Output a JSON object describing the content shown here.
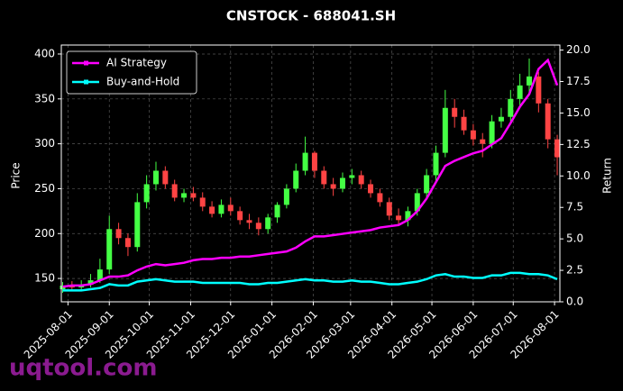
{
  "chart_data": {
    "type": "candlestick",
    "title": "CNSTOCK - 688041.SH",
    "ylabel": "Price",
    "y2label": "Return",
    "watermark": "uqtool.com",
    "x": [
      "2025-07-28",
      "2025-08-04",
      "2025-08-11",
      "2025-08-18",
      "2025-08-25",
      "2025-09-01",
      "2025-09-08",
      "2025-09-15",
      "2025-09-22",
      "2025-09-29",
      "2025-10-06",
      "2025-10-13",
      "2025-10-20",
      "2025-10-27",
      "2025-11-03",
      "2025-11-10",
      "2025-11-17",
      "2025-11-24",
      "2025-12-01",
      "2025-12-08",
      "2025-12-15",
      "2025-12-22",
      "2025-12-29",
      "2026-01-05",
      "2026-01-12",
      "2026-01-19",
      "2026-01-26",
      "2026-02-02",
      "2026-02-09",
      "2026-02-16",
      "2026-02-23",
      "2026-03-02",
      "2026-03-09",
      "2026-03-16",
      "2026-03-23",
      "2026-03-30",
      "2026-04-06",
      "2026-04-13",
      "2026-04-20",
      "2026-04-27",
      "2026-05-04",
      "2026-05-11",
      "2026-05-18",
      "2026-05-25",
      "2026-06-01",
      "2026-06-08",
      "2026-06-15",
      "2026-06-22",
      "2026-06-29",
      "2026-07-06",
      "2026-07-13",
      "2026-07-20",
      "2026-07-27",
      "2026-08-03"
    ],
    "open": [
      138,
      142,
      140,
      143,
      148,
      160,
      205,
      195,
      185,
      235,
      255,
      270,
      255,
      240,
      245,
      240,
      230,
      222,
      232,
      225,
      215,
      212,
      205,
      218,
      232,
      250,
      270,
      290,
      270,
      255,
      250,
      262,
      265,
      255,
      245,
      235,
      220,
      215,
      225,
      245,
      265,
      290,
      340,
      330,
      315,
      305,
      300,
      325,
      330,
      350,
      365,
      375,
      345,
      305
    ],
    "high": [
      146,
      147,
      148,
      155,
      172,
      220,
      212,
      200,
      245,
      265,
      280,
      275,
      260,
      250,
      252,
      246,
      236,
      238,
      240,
      230,
      222,
      218,
      222,
      235,
      255,
      278,
      308,
      292,
      275,
      262,
      268,
      272,
      270,
      260,
      250,
      240,
      228,
      230,
      250,
      272,
      298,
      360,
      350,
      338,
      322,
      312,
      332,
      340,
      360,
      378,
      395,
      380,
      350,
      310
    ],
    "low": [
      134,
      136,
      137,
      140,
      145,
      155,
      188,
      175,
      180,
      228,
      248,
      250,
      236,
      235,
      236,
      225,
      218,
      218,
      220,
      210,
      205,
      198,
      200,
      212,
      228,
      246,
      265,
      262,
      250,
      242,
      246,
      255,
      250,
      240,
      230,
      215,
      210,
      208,
      220,
      240,
      258,
      285,
      318,
      310,
      298,
      285,
      295,
      318,
      325,
      342,
      355,
      335,
      295,
      265
    ],
    "close": [
      142,
      140,
      143,
      148,
      160,
      205,
      195,
      185,
      235,
      255,
      270,
      255,
      240,
      245,
      240,
      230,
      222,
      232,
      225,
      215,
      212,
      205,
      218,
      232,
      250,
      270,
      290,
      270,
      255,
      250,
      262,
      265,
      255,
      245,
      235,
      220,
      215,
      225,
      245,
      265,
      290,
      340,
      330,
      315,
      305,
      300,
      325,
      330,
      350,
      365,
      375,
      345,
      305,
      285
    ],
    "up_color": "#44ff44",
    "down_color": "#ff4444",
    "series": [
      {
        "name": "AI Strategy",
        "color": "#ff00ff",
        "axis": "y2",
        "values": [
          1.2,
          1.3,
          1.3,
          1.4,
          1.7,
          2.0,
          2.0,
          2.1,
          2.5,
          2.8,
          3.0,
          2.9,
          3.0,
          3.1,
          3.3,
          3.4,
          3.4,
          3.5,
          3.5,
          3.6,
          3.6,
          3.7,
          3.8,
          3.9,
          4.0,
          4.3,
          4.8,
          5.2,
          5.2,
          5.3,
          5.4,
          5.5,
          5.6,
          5.7,
          5.9,
          6.0,
          6.1,
          6.5,
          7.2,
          8.2,
          9.5,
          10.8,
          11.2,
          11.5,
          11.8,
          12.0,
          12.5,
          13.0,
          14.2,
          15.5,
          16.5,
          18.5,
          19.2,
          17.2
        ]
      },
      {
        "name": "Buy-and-Hold",
        "color": "#00ffff",
        "axis": "y2",
        "values": [
          0.9,
          0.9,
          0.9,
          1.0,
          1.1,
          1.4,
          1.3,
          1.3,
          1.6,
          1.7,
          1.8,
          1.7,
          1.6,
          1.6,
          1.6,
          1.5,
          1.5,
          1.5,
          1.5,
          1.5,
          1.4,
          1.4,
          1.5,
          1.5,
          1.6,
          1.7,
          1.8,
          1.7,
          1.7,
          1.6,
          1.6,
          1.7,
          1.6,
          1.6,
          1.5,
          1.4,
          1.4,
          1.5,
          1.6,
          1.8,
          2.1,
          2.2,
          2.0,
          2.0,
          1.9,
          1.9,
          2.1,
          2.1,
          2.3,
          2.3,
          2.2,
          2.2,
          2.1,
          1.8
        ]
      }
    ],
    "xlim": [
      "2025-07-27",
      "2026-08-05"
    ],
    "xticks": [
      "2025-08-01",
      "2025-09-01",
      "2025-10-01",
      "2025-11-01",
      "2025-12-01",
      "2026-01-01",
      "2026-02-01",
      "2026-03-01",
      "2026-04-01",
      "2026-05-01",
      "2026-06-01",
      "2026-07-01",
      "2026-08-01"
    ],
    "ylim": [
      124,
      410
    ],
    "yticks": [
      150,
      200,
      250,
      300,
      350,
      400
    ],
    "y2lim": [
      0,
      20.4
    ],
    "y2ticks": [
      {
        "value": 0,
        "label": "0.0"
      },
      {
        "value": 2.5,
        "label": "2.5"
      },
      {
        "value": 5,
        "label": "5.0"
      },
      {
        "value": 7.5,
        "label": "7.5"
      },
      {
        "value": 10,
        "label": "10.0"
      },
      {
        "value": 12.5,
        "label": "12.5"
      },
      {
        "value": 15,
        "label": "15.0"
      },
      {
        "value": 17.5,
        "label": "17.5"
      },
      {
        "value": 20,
        "label": "20.0"
      }
    ],
    "grid": true,
    "legend": "upper left"
  }
}
